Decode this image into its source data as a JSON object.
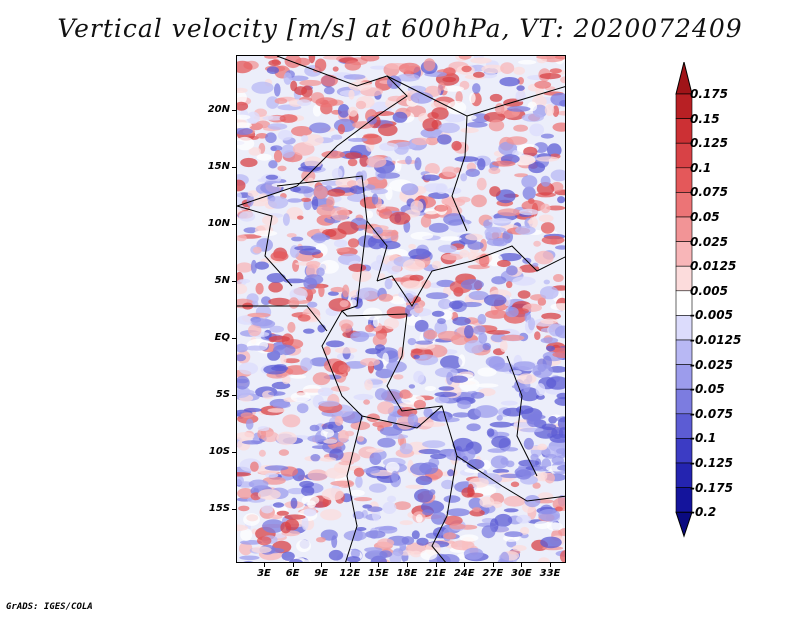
{
  "title": "Vertical velocity [m/s] at 600hPa, VT: 2020072409",
  "footer": "GrADS: IGES/COLA",
  "map": {
    "lat_labels": [
      "20N",
      "15N",
      "10N",
      "5N",
      "EQ",
      "5S",
      "10S",
      "15S"
    ],
    "lon_labels": [
      "3E",
      "6E",
      "9E",
      "12E",
      "15E",
      "18E",
      "21E",
      "24E",
      "27E",
      "30E",
      "33E"
    ],
    "field_note_colors": {
      "positive": "#e0484a",
      "negative": "#5a5ad8",
      "neutral": "#ffffff"
    }
  },
  "colorbar": {
    "labels": [
      "0.175",
      "0.15",
      "0.125",
      "0.1",
      "0.075",
      "0.05",
      "0.025",
      "0.0125",
      "0.005",
      "-0.005",
      "-0.0125",
      "-0.025",
      "-0.05",
      "-0.075",
      "-0.1",
      "-0.125",
      "-0.175",
      "-0.2"
    ],
    "colors": [
      "#a01418",
      "#b82024",
      "#cc3034",
      "#d84246",
      "#e4585a",
      "#ec7476",
      "#f29496",
      "#f8b6b8",
      "#fcdcdc",
      "#ffffff",
      "#dcdcfc",
      "#b8b8f4",
      "#9c9cec",
      "#7c7ce0",
      "#5c5cd4",
      "#3c3cc4",
      "#2424b0",
      "#14149c",
      "#0a0a80"
    ]
  }
}
